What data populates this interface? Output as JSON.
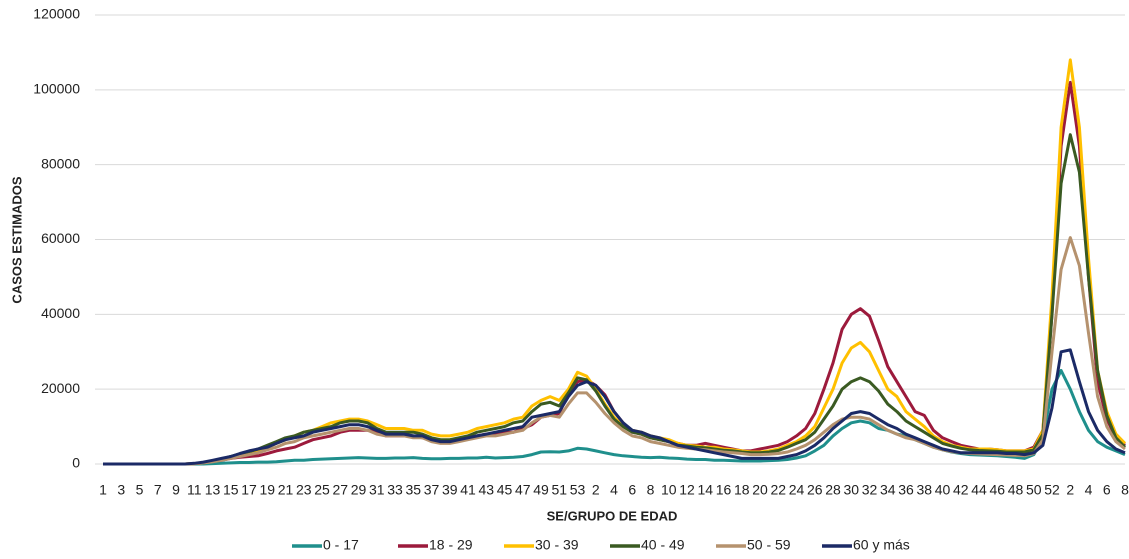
{
  "chart_data": {
    "type": "line",
    "y_label": "CASOS ESTIMADOS",
    "x_label": "SE/GRUPO DE EDAD",
    "categories": [
      1,
      null,
      3,
      null,
      5,
      null,
      7,
      null,
      9,
      null,
      11,
      null,
      13,
      null,
      15,
      null,
      17,
      null,
      19,
      null,
      21,
      null,
      23,
      null,
      25,
      null,
      27,
      null,
      29,
      null,
      31,
      null,
      33,
      null,
      35,
      null,
      37,
      null,
      39,
      null,
      41,
      null,
      43,
      null,
      45,
      null,
      47,
      null,
      49,
      null,
      51,
      null,
      53,
      null,
      2,
      null,
      4,
      null,
      6,
      null,
      8,
      null,
      10,
      null,
      12,
      null,
      14,
      null,
      16,
      null,
      18,
      null,
      20,
      null,
      22,
      null,
      24,
      null,
      26,
      null,
      28,
      null,
      30,
      null,
      32,
      null,
      34,
      null,
      36,
      null,
      38,
      null,
      40,
      null,
      42,
      null,
      44,
      null,
      46,
      null,
      48,
      null,
      50,
      null,
      52,
      null,
      2,
      null,
      4,
      null,
      6,
      null,
      8
    ],
    "ylim": [
      0,
      120000
    ],
    "yticks": [
      0,
      20000,
      40000,
      60000,
      80000,
      100000,
      120000
    ],
    "grid": true,
    "legend": "bottom",
    "series": [
      {
        "name": "0 - 17",
        "color": "#1f8f8c",
        "values": [
          0,
          0,
          0,
          0,
          0,
          0,
          0,
          0,
          0,
          0,
          0,
          0,
          100,
          200,
          300,
          400,
          400,
          500,
          500,
          600,
          800,
          1000,
          1000,
          1200,
          1300,
          1400,
          1500,
          1600,
          1700,
          1600,
          1500,
          1500,
          1600,
          1600,
          1700,
          1500,
          1400,
          1400,
          1500,
          1500,
          1600,
          1600,
          1800,
          1600,
          1700,
          1800,
          2000,
          2500,
          3200,
          3300,
          3200,
          3500,
          4200,
          4000,
          3500,
          3000,
          2500,
          2200,
          2000,
          1800,
          1700,
          1800,
          1600,
          1500,
          1300,
          1200,
          1200,
          1000,
          1000,
          900,
          800,
          800,
          800,
          900,
          1000,
          1200,
          1600,
          2200,
          3500,
          5000,
          7500,
          9500,
          11000,
          11500,
          11000,
          9500,
          9000,
          8000,
          7500,
          6500,
          5500,
          4500,
          3800,
          3200,
          2800,
          2500,
          2400,
          2300,
          2200,
          2000,
          1800,
          1500,
          2500,
          7000,
          20000,
          25000,
          20000,
          14000,
          9000,
          6000,
          4500,
          3500,
          2500
        ]
      },
      {
        "name": "18 - 29",
        "color": "#9c1a3c",
        "values": [
          0,
          0,
          0,
          0,
          0,
          0,
          0,
          0,
          0,
          0,
          100,
          300,
          700,
          1000,
          1500,
          1800,
          2000,
          2200,
          2800,
          3500,
          4000,
          4500,
          5500,
          6500,
          7000,
          7500,
          8500,
          9000,
          9000,
          9000,
          8500,
          7500,
          7500,
          7500,
          7500,
          7000,
          6500,
          6000,
          6000,
          6500,
          7000,
          7500,
          8000,
          8000,
          8500,
          8500,
          9500,
          10500,
          12500,
          13000,
          13500,
          19000,
          22000,
          22500,
          21000,
          18500,
          14000,
          11000,
          8500,
          8000,
          7000,
          6500,
          6000,
          5500,
          5000,
          5000,
          5500,
          5000,
          4500,
          4000,
          3500,
          3500,
          4000,
          4500,
          5000,
          6000,
          7500,
          9500,
          13500,
          20000,
          27000,
          36000,
          40000,
          41500,
          39500,
          33000,
          26000,
          22000,
          18000,
          14000,
          13000,
          9000,
          7000,
          6000,
          5000,
          4500,
          4000,
          4000,
          3800,
          3500,
          3500,
          3500,
          4500,
          9000,
          40000,
          85000,
          102000,
          85000,
          50000,
          22000,
          12000,
          7000,
          5000
        ]
      },
      {
        "name": "30 - 39",
        "color": "#ffc000",
        "values": [
          0,
          0,
          0,
          0,
          0,
          0,
          0,
          0,
          0,
          0,
          100,
          300,
          700,
          1200,
          1800,
          2500,
          3000,
          3500,
          4500,
          5500,
          6500,
          7500,
          8500,
          9000,
          10000,
          11000,
          11500,
          12000,
          12000,
          11500,
          10500,
          9500,
          9500,
          9500,
          9000,
          9000,
          8000,
          7500,
          7500,
          8000,
          8500,
          9500,
          10000,
          10500,
          11000,
          12000,
          12500,
          15500,
          17000,
          18000,
          17000,
          20000,
          24500,
          23500,
          20000,
          16000,
          12500,
          10000,
          9000,
          8500,
          7500,
          7000,
          6500,
          5500,
          5000,
          4800,
          4500,
          4500,
          4000,
          3800,
          3500,
          3200,
          3200,
          3500,
          4000,
          5000,
          6000,
          7500,
          10000,
          15000,
          20000,
          27000,
          31000,
          32500,
          30000,
          25000,
          20000,
          18000,
          14000,
          12000,
          10000,
          7500,
          6000,
          5000,
          4500,
          4000,
          4000,
          4000,
          3800,
          3500,
          3500,
          3500,
          4000,
          9000,
          45000,
          90000,
          108000,
          90000,
          55000,
          25000,
          14000,
          8000,
          5500
        ]
      },
      {
        "name": "40 - 49",
        "color": "#3a5a22",
        "values": [
          0,
          0,
          0,
          0,
          0,
          0,
          0,
          0,
          0,
          0,
          100,
          300,
          800,
          1300,
          2000,
          2700,
          3300,
          4000,
          5000,
          6000,
          7000,
          7500,
          8500,
          9000,
          9500,
          10000,
          11000,
          11500,
          11500,
          11000,
          9500,
          8500,
          8500,
          8500,
          8500,
          8000,
          7000,
          6500,
          6500,
          7000,
          7500,
          8500,
          9000,
          9500,
          10000,
          11000,
          11500,
          14000,
          16000,
          16500,
          15500,
          19000,
          23000,
          22500,
          19500,
          15500,
          12000,
          10000,
          8500,
          8000,
          7000,
          6500,
          6000,
          5000,
          4800,
          4500,
          4300,
          4000,
          3700,
          3500,
          3200,
          3000,
          3000,
          3200,
          3600,
          4500,
          5500,
          6500,
          8500,
          12000,
          15500,
          20000,
          22000,
          23000,
          22000,
          19500,
          16000,
          14000,
          11500,
          10000,
          8500,
          7000,
          5500,
          4800,
          4200,
          3800,
          3600,
          3500,
          3400,
          3200,
          3200,
          3200,
          3800,
          8000,
          40000,
          75000,
          88000,
          78000,
          50000,
          25000,
          13000,
          7000,
          4500
        ]
      },
      {
        "name": "50 - 59",
        "color": "#b5926e",
        "values": [
          0,
          0,
          0,
          0,
          0,
          0,
          0,
          0,
          0,
          0,
          100,
          300,
          600,
          1000,
          1500,
          2000,
          2500,
          3000,
          3800,
          4500,
          5500,
          6000,
          7000,
          7500,
          8000,
          8500,
          9000,
          9500,
          9500,
          9000,
          8000,
          7500,
          7500,
          7500,
          7000,
          7000,
          6000,
          5500,
          5500,
          6000,
          6500,
          7000,
          7500,
          7500,
          8000,
          8500,
          9000,
          11000,
          12500,
          13000,
          12500,
          16000,
          19000,
          19000,
          16500,
          13500,
          11000,
          9000,
          7500,
          7000,
          6000,
          5500,
          5000,
          4500,
          4200,
          4000,
          3800,
          3500,
          3200,
          3000,
          2800,
          2500,
          2500,
          2600,
          2800,
          3200,
          4000,
          5000,
          6500,
          8500,
          10500,
          12000,
          12500,
          12500,
          12000,
          10500,
          9000,
          8000,
          7000,
          6500,
          5500,
          4500,
          3800,
          3300,
          3000,
          2800,
          2700,
          2600,
          2500,
          2400,
          2300,
          2200,
          2800,
          6500,
          30000,
          52000,
          60500,
          53000,
          35000,
          18000,
          10000,
          6000,
          4000
        ]
      },
      {
        "name": "60 y más",
        "color": "#1b2a66",
        "values": [
          0,
          0,
          0,
          0,
          0,
          0,
          0,
          0,
          0,
          0,
          200,
          500,
          1000,
          1500,
          2000,
          2800,
          3500,
          4000,
          4500,
          5500,
          6500,
          7000,
          7500,
          8500,
          9000,
          9500,
          10000,
          10500,
          10500,
          10000,
          9000,
          8000,
          8000,
          8000,
          7500,
          7500,
          6500,
          6000,
          6000,
          6500,
          7000,
          7500,
          8000,
          8500,
          9000,
          9500,
          10000,
          12500,
          13000,
          13500,
          14000,
          18000,
          21000,
          22000,
          21000,
          18000,
          14000,
          11000,
          9000,
          8500,
          7500,
          7000,
          6000,
          5000,
          4500,
          4000,
          3500,
          3000,
          2500,
          2000,
          1500,
          1500,
          1500,
          1500,
          1500,
          2000,
          2500,
          3500,
          5000,
          7000,
          9500,
          11500,
          13500,
          14000,
          13500,
          12000,
          10500,
          9500,
          8000,
          7000,
          6000,
          5000,
          4000,
          3500,
          3000,
          3000,
          3000,
          3000,
          3000,
          2800,
          2800,
          2500,
          3000,
          5000,
          15000,
          30000,
          30500,
          22000,
          14000,
          9000,
          6000,
          4000,
          3000
        ]
      }
    ]
  }
}
